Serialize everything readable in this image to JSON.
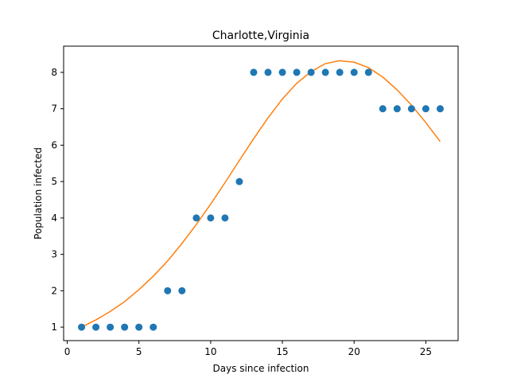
{
  "chart_data": {
    "type": "scatter",
    "title": "Charlotte,Virginia",
    "xlabel": "Days since infection",
    "ylabel": "Population infected",
    "xlim": [
      -0.25,
      27.25
    ],
    "ylim": [
      0.63,
      8.72
    ],
    "xticks": [
      0,
      5,
      10,
      15,
      20,
      25
    ],
    "yticks": [
      1,
      2,
      3,
      4,
      5,
      6,
      7,
      8
    ],
    "grid": false,
    "colors": {
      "points": "#1f77b4",
      "fit": "#ff7f0e"
    },
    "series": [
      {
        "kind": "scatter",
        "x": [
          1,
          2,
          3,
          4,
          5,
          6,
          7,
          8,
          9,
          10,
          11,
          12,
          13,
          14,
          15,
          16,
          17,
          18,
          19,
          20,
          21,
          22,
          23,
          24,
          25,
          26
        ],
        "y": [
          1,
          1,
          1,
          1,
          1,
          1,
          2,
          2,
          4,
          4,
          4,
          5,
          8,
          8,
          8,
          8,
          8,
          8,
          8,
          8,
          8,
          7,
          7,
          7,
          7,
          7
        ]
      },
      {
        "kind": "line",
        "x": [
          1,
          2,
          3,
          4,
          5,
          6,
          7,
          8,
          9,
          10,
          11,
          12,
          13,
          14,
          15,
          16,
          17,
          18,
          19,
          20,
          21,
          22,
          23,
          24,
          25,
          26
        ],
        "y": [
          1.0,
          1.2,
          1.43,
          1.7,
          2.03,
          2.4,
          2.82,
          3.3,
          3.82,
          4.38,
          4.97,
          5.58,
          6.18,
          6.75,
          7.27,
          7.7,
          8.02,
          8.24,
          8.32,
          8.28,
          8.13,
          7.87,
          7.52,
          7.1,
          6.62,
          6.1
        ]
      }
    ]
  }
}
